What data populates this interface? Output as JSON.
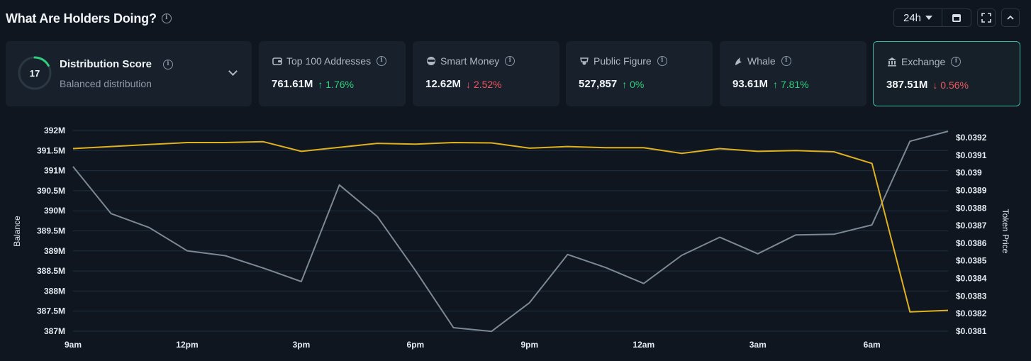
{
  "header": {
    "title": "What Are Holders Doing?"
  },
  "controls": {
    "range": "24h"
  },
  "score": {
    "value": "17",
    "title": "Distribution Score",
    "subtitle": "Balanced distribution",
    "fraction": 0.17
  },
  "cards": [
    {
      "title": "Top 100 Addresses",
      "value": "761.61M",
      "change": "1.76%",
      "direction": "up",
      "icon": "wallet-icon"
    },
    {
      "title": "Smart Money",
      "value": "12.62M",
      "change": "2.52%",
      "direction": "down",
      "icon": "smart-money-icon"
    },
    {
      "title": "Public Figure",
      "value": "527,857",
      "change": "0%",
      "direction": "up",
      "icon": "public-figure-icon"
    },
    {
      "title": "Whale",
      "value": "93.61M",
      "change": "7.81%",
      "direction": "up",
      "icon": "whale-icon"
    },
    {
      "title": "Exchange",
      "value": "387.51M",
      "change": "0.56%",
      "direction": "down",
      "icon": "exchange-icon",
      "selected": true
    }
  ],
  "colors": {
    "balance": "#e0b11e",
    "price": "#7c8894",
    "up": "#2fcf7c",
    "down": "#f0565d",
    "selected_border": "#3fb6a5"
  },
  "chart_data": {
    "type": "line",
    "x": [
      "9am",
      "10am",
      "11am",
      "12pm",
      "1pm",
      "2pm",
      "3pm",
      "4pm",
      "5pm",
      "6pm",
      "7pm",
      "8pm",
      "9pm",
      "10pm",
      "11pm",
      "12am",
      "1am",
      "2am",
      "3am",
      "4am",
      "5am",
      "6am",
      "7am",
      "8am"
    ],
    "x_tick_labels": [
      "9am",
      "12pm",
      "3pm",
      "6pm",
      "9pm",
      "12am",
      "3am",
      "6am"
    ],
    "xlabel": "",
    "y_left": {
      "label": "Balance",
      "ticks": [
        "392M",
        "391.5M",
        "391M",
        "390.5M",
        "390M",
        "389.5M",
        "389M",
        "388.5M",
        "388M",
        "387.5M",
        "387M"
      ],
      "min": 387,
      "max": 392
    },
    "y_right": {
      "label": "Token Price",
      "ticks": [
        "$0.0392",
        "$0.0391",
        "$0.039",
        "$0.0389",
        "$0.0388",
        "$0.0387",
        "$0.0386",
        "$0.0385",
        "$0.0384",
        "$0.0383",
        "$0.0382",
        "$0.0381"
      ],
      "min": 0.0381,
      "max": 0.0392
    },
    "grid": true,
    "series": [
      {
        "axis": "left",
        "values": [
          391.55,
          391.6,
          391.65,
          391.7,
          391.7,
          391.72,
          391.48,
          391.58,
          391.68,
          391.66,
          391.7,
          391.69,
          391.56,
          391.6,
          391.57,
          391.57,
          391.43,
          391.55,
          391.48,
          391.5,
          391.47,
          391.18,
          387.48,
          387.52
        ]
      },
      {
        "axis": "right",
        "values": [
          0.039035,
          0.038768,
          0.038689,
          0.038557,
          0.038529,
          0.038459,
          0.038382,
          0.038931,
          0.038751,
          0.038445,
          0.03812,
          0.038099,
          0.038262,
          0.038536,
          0.038462,
          0.038371,
          0.038531,
          0.038634,
          0.03854,
          0.038647,
          0.038651,
          0.038704,
          0.039179,
          0.039236
        ]
      }
    ]
  }
}
